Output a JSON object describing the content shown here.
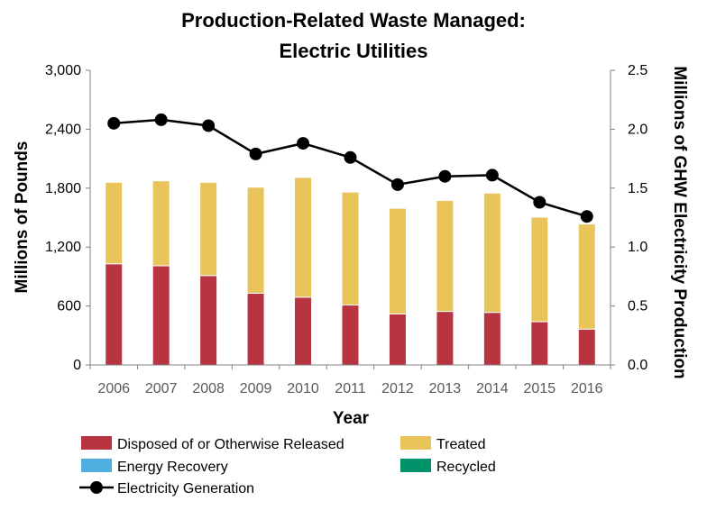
{
  "chart_data": {
    "type": "bar",
    "title_lines": [
      "Production-Related Waste Managed:",
      "Electric Utilities"
    ],
    "xlabel": "Year",
    "ylabel": "Millions of Pounds",
    "y2label": "Millions of GHW Electricity Production",
    "categories": [
      "2006",
      "2007",
      "2008",
      "2009",
      "2010",
      "2011",
      "2012",
      "2013",
      "2014",
      "2015",
      "2016"
    ],
    "ylim": [
      0,
      3000
    ],
    "yticks": [
      0,
      600,
      1200,
      1800,
      2400,
      3000
    ],
    "ytick_labels": [
      "0",
      "600",
      "1,200",
      "1,800",
      "2,400",
      "3,000"
    ],
    "y2lim": [
      0,
      2.5
    ],
    "y2ticks": [
      0.0,
      0.5,
      1.0,
      1.5,
      2.0,
      2.5
    ],
    "y2tick_labels": [
      "0.0",
      "0.5",
      "1.0",
      "1.5",
      "2.0",
      "2.5"
    ],
    "stacked": true,
    "series": [
      {
        "name": "Disposed of or Otherwise Released",
        "color": "#b83440",
        "values": [
          1030,
          1010,
          910,
          730,
          690,
          610,
          520,
          545,
          535,
          440,
          365
        ]
      },
      {
        "name": "Energy Recovery",
        "color": "#4eaee0",
        "values": [
          0,
          0,
          0,
          0,
          0,
          0,
          0,
          0,
          0,
          0,
          0
        ]
      },
      {
        "name": "Recycled",
        "color": "#00936a",
        "values": [
          0,
          0,
          0,
          0,
          0,
          0,
          0,
          0,
          0,
          0,
          0
        ]
      },
      {
        "name": "Treated",
        "color": "#e8c45a",
        "values": [
          830,
          865,
          950,
          1080,
          1220,
          1150,
          1075,
          1130,
          1215,
          1065,
          1070
        ]
      }
    ],
    "line_series": {
      "name": "Electricity Generation",
      "color": "#000000",
      "axis": "right",
      "values": [
        2.05,
        2.08,
        2.03,
        1.79,
        1.88,
        1.76,
        1.53,
        1.6,
        1.61,
        1.38,
        1.26
      ]
    },
    "legend": [
      {
        "label": "Disposed of or Otherwise Released",
        "kind": "box",
        "color": "#b83440"
      },
      {
        "label": "Treated",
        "kind": "box",
        "color": "#e8c45a"
      },
      {
        "label": "Energy Recovery",
        "kind": "box",
        "color": "#4eaee0"
      },
      {
        "label": "Recycled",
        "kind": "box",
        "color": "#00936a"
      },
      {
        "label": "Electricity Generation",
        "kind": "line",
        "color": "#000000"
      }
    ],
    "legend_position": "bottom",
    "grid": false
  }
}
